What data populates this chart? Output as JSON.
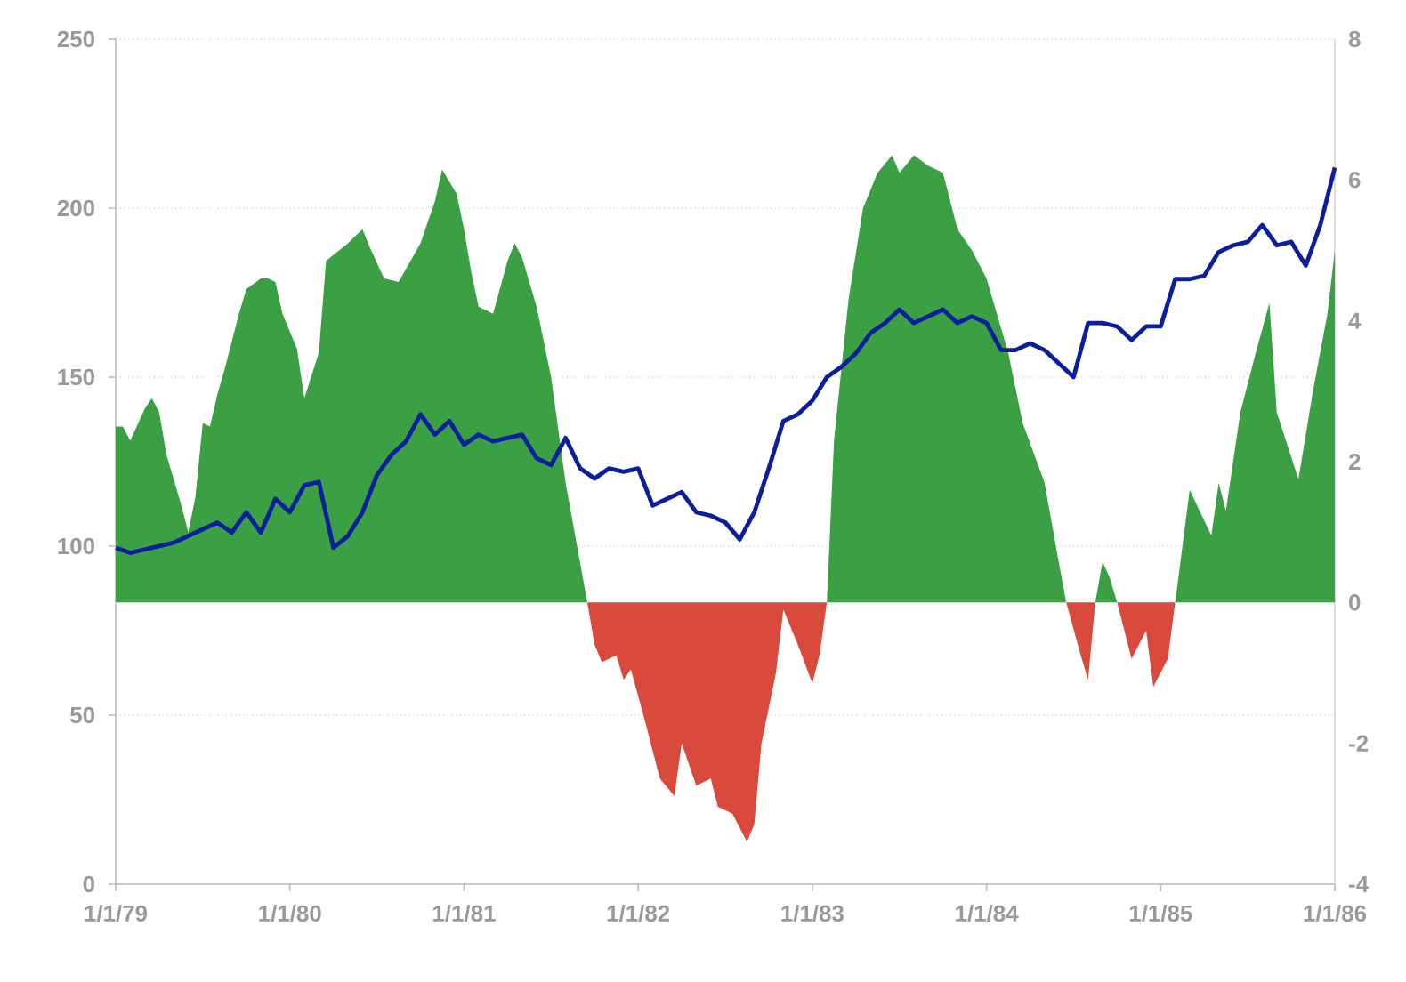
{
  "chart_data": {
    "type": "line",
    "xlim": [
      "1979-01-01",
      "1986-01-01"
    ],
    "xticks": [
      {
        "value": "1979-01-01",
        "label": "1/1/79"
      },
      {
        "value": "1980-01-01",
        "label": "1/1/80"
      },
      {
        "value": "1981-01-01",
        "label": "1/1/81"
      },
      {
        "value": "1982-01-01",
        "label": "1/1/82"
      },
      {
        "value": "1983-01-01",
        "label": "1/1/83"
      },
      {
        "value": "1984-01-01",
        "label": "1/1/84"
      },
      {
        "value": "1985-01-01",
        "label": "1/1/85"
      },
      {
        "value": "1986-01-01",
        "label": "1/1/86"
      }
    ],
    "ylim": [
      0,
      250
    ],
    "yticks": [
      0,
      50,
      100,
      150,
      200,
      250
    ],
    "y2lim": [
      -4,
      8
    ],
    "y2ticks": [
      -4,
      -2,
      0,
      2,
      4,
      6,
      8
    ],
    "grid": "y",
    "series": [
      {
        "type": "area",
        "axis": "y2",
        "color": "#3aa043",
        "x": [
          "1979-01-01",
          "1979-01-16",
          "1979-02-01",
          "1979-03-01",
          "1979-03-16",
          "1979-04-01",
          "1979-04-16",
          "1979-05-16",
          "1979-06-01",
          "1979-06-16",
          "1979-07-01",
          "1979-07-16",
          "1979-08-01",
          "1979-08-16",
          "1979-09-16",
          "1979-10-01",
          "1979-11-01",
          "1979-11-16",
          "1979-12-01",
          "1979-12-16",
          "1980-01-16",
          "1980-02-01",
          "1980-03-01",
          "1980-03-16",
          "1980-05-01",
          "1980-06-01",
          "1980-06-16",
          "1980-07-16",
          "1980-08-16",
          "1980-10-01",
          "1980-11-01",
          "1980-11-16",
          "1980-12-16",
          "1981-01-01",
          "1981-01-16",
          "1981-02-01",
          "1981-03-01",
          "1981-04-01",
          "1981-04-16",
          "1981-05-01",
          "1981-06-01",
          "1981-07-01",
          "1981-08-01",
          "1981-09-16"
        ],
        "values": [
          2.5,
          2.5,
          2.3,
          2.75,
          2.9,
          2.7,
          2.1,
          1.4,
          1.0,
          1.5,
          2.55,
          2.5,
          2.95,
          3.3,
          4.1,
          4.45,
          4.6,
          4.6,
          4.55,
          4.1,
          3.6,
          2.9,
          3.55,
          4.85,
          5.1,
          5.3,
          5.05,
          4.6,
          4.55,
          5.1,
          5.7,
          6.15,
          5.8,
          5.3,
          4.7,
          4.2,
          4.1,
          4.85,
          5.1,
          4.9,
          4.2,
          3.2,
          1.7,
          0
        ]
      },
      {
        "type": "area",
        "axis": "y2",
        "color": "#d94a3d",
        "x": [
          "1981-09-16",
          "1981-10-01",
          "1981-10-16",
          "1981-11-16",
          "1981-12-01",
          "1981-12-16",
          "1982-01-16",
          "1982-02-16",
          "1982-03-16",
          "1982-04-01",
          "1982-05-01",
          "1982-06-01",
          "1982-06-16",
          "1982-07-16",
          "1982-08-16",
          "1982-09-01",
          "1982-09-16",
          "1982-10-16",
          "1982-11-01",
          "1982-12-01",
          "1983-01-01",
          "1983-01-16",
          "1983-02-01"
        ],
        "values": [
          0,
          -0.6,
          -0.85,
          -0.75,
          -1.1,
          -0.95,
          -1.7,
          -2.5,
          -2.75,
          -2.0,
          -2.6,
          -2.5,
          -2.9,
          -3.0,
          -3.4,
          -3.15,
          -2.0,
          -1.0,
          -0.1,
          -0.6,
          -1.15,
          -0.75,
          0
        ]
      },
      {
        "type": "area",
        "axis": "y2",
        "color": "#3aa043",
        "x": [
          "1983-02-01",
          "1983-02-16",
          "1983-03-16",
          "1983-04-16",
          "1983-05-16",
          "1983-06-16",
          "1983-07-01",
          "1983-08-01",
          "1983-09-01",
          "1983-10-01",
          "1983-11-01",
          "1983-12-01",
          "1984-01-01",
          "1984-02-16",
          "1984-03-16",
          "1984-05-01",
          "1984-06-01",
          "1984-06-16"
        ],
        "values": [
          0,
          2.3,
          4.3,
          5.6,
          6.1,
          6.35,
          6.1,
          6.35,
          6.2,
          6.1,
          5.3,
          5.0,
          4.6,
          3.55,
          2.55,
          1.7,
          0.55,
          0
        ]
      },
      {
        "type": "area",
        "axis": "y2",
        "color": "#d94a3d",
        "x": [
          "1984-06-16",
          "1984-07-16",
          "1984-08-01",
          "1984-08-16"
        ],
        "values": [
          0,
          -0.75,
          -1.1,
          0
        ]
      },
      {
        "type": "area",
        "axis": "y2",
        "color": "#3aa043",
        "x": [
          "1984-08-16",
          "1984-09-01",
          "1984-09-16",
          "1984-10-01"
        ],
        "values": [
          0,
          0.58,
          0.35,
          0
        ]
      },
      {
        "type": "area",
        "axis": "y2",
        "color": "#d94a3d",
        "x": [
          "1984-10-01",
          "1984-11-01",
          "1984-12-01",
          "1984-12-16",
          "1985-01-16",
          "1985-02-01"
        ],
        "values": [
          0,
          -0.8,
          -0.4,
          -1.2,
          -0.8,
          0
        ]
      },
      {
        "type": "area",
        "axis": "y2",
        "color": "#3aa043",
        "x": [
          "1985-02-01",
          "1985-03-01",
          "1985-04-16",
          "1985-05-01",
          "1985-05-16",
          "1985-06-16",
          "1985-07-16",
          "1985-08-16",
          "1985-09-01",
          "1985-10-16",
          "1985-11-16",
          "1985-12-16",
          "1986-01-01"
        ],
        "values": [
          0,
          1.6,
          0.95,
          1.7,
          1.3,
          2.7,
          3.5,
          4.25,
          2.7,
          1.75,
          3.0,
          4.1,
          5.0
        ]
      },
      {
        "color": "#0b1f9c",
        "x": [
          "1979-01",
          "1979-02",
          "1979-03",
          "1979-05",
          "1979-07",
          "1979-08",
          "1979-09",
          "1979-10",
          "1979-11",
          "1979-12",
          "1980-01",
          "1980-02",
          "1980-03",
          "1980-04",
          "1980-05",
          "1980-06",
          "1980-07",
          "1980-08",
          "1980-09",
          "1980-10",
          "1980-11",
          "1980-12",
          "1981-01",
          "1981-02",
          "1981-03",
          "1981-05",
          "1981-06",
          "1981-07",
          "1981-08",
          "1981-09",
          "1981-10",
          "1981-11",
          "1981-12",
          "1982-01",
          "1982-02",
          "1982-03",
          "1982-04",
          "1982-05",
          "1982-06",
          "1982-07",
          "1982-08",
          "1982-09",
          "1982-10",
          "1982-11",
          "1982-12",
          "1983-01",
          "1983-02",
          "1983-03",
          "1983-04",
          "1983-05",
          "1983-06",
          "1983-07",
          "1983-08",
          "1983-10",
          "1983-11",
          "1983-12",
          "1984-01",
          "1984-02",
          "1984-03",
          "1984-04",
          "1984-05",
          "1984-06",
          "1984-07",
          "1984-08",
          "1984-09",
          "1984-10",
          "1984-11",
          "1984-12",
          "1985-01",
          "1985-02",
          "1985-03",
          "1985-04",
          "1985-05",
          "1985-06",
          "1985-07",
          "1985-08",
          "1985-09",
          "1985-10",
          "1985-11",
          "1985-12",
          "1986-01"
        ],
        "values": [
          99.5,
          98,
          99,
          101,
          105,
          107,
          104,
          110,
          104,
          114,
          110,
          118,
          119,
          99.5,
          103,
          110,
          121,
          127,
          131,
          139,
          133,
          137,
          130,
          133,
          131,
          133,
          126,
          124,
          132,
          123,
          120,
          123,
          122,
          123,
          112,
          114,
          116,
          110,
          109,
          107,
          102,
          110,
          123,
          137,
          139,
          143,
          150,
          153,
          157,
          163,
          166,
          170,
          166,
          170,
          166,
          168,
          166,
          158,
          158,
          160,
          158,
          154,
          150,
          166,
          166,
          165,
          161,
          165,
          165,
          179,
          179,
          180,
          187,
          189,
          190,
          195,
          189,
          190,
          183,
          195,
          212
        ]
      }
    ]
  }
}
